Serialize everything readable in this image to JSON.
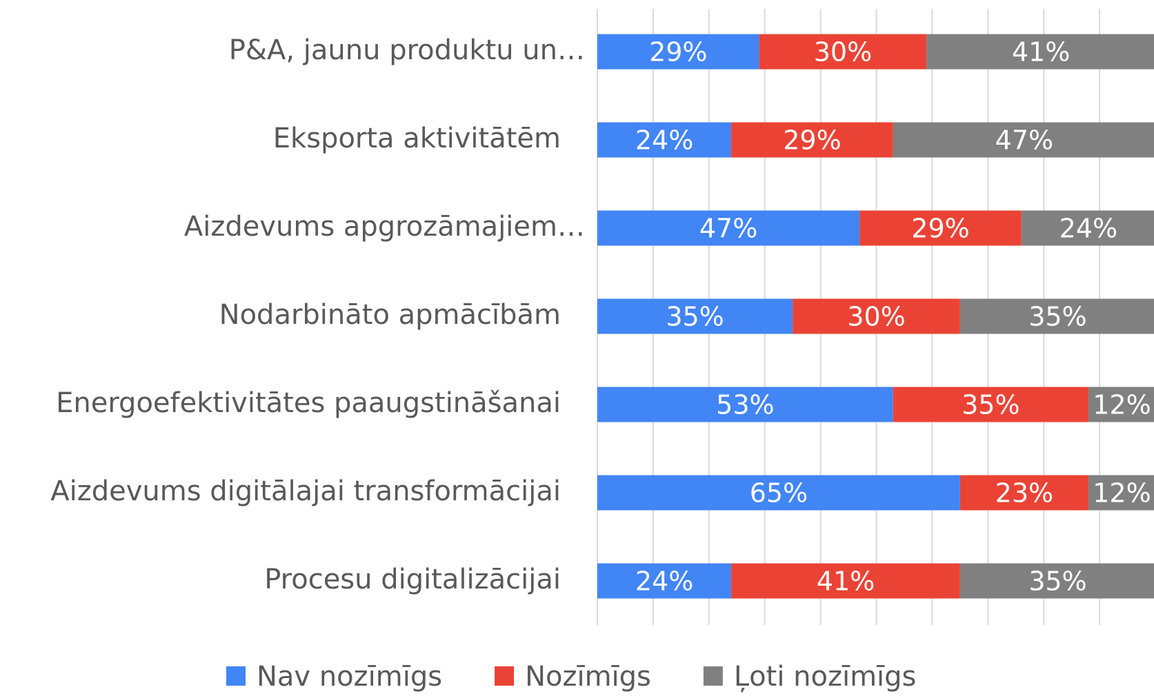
{
  "chart_data": {
    "type": "stacked_barh",
    "categories": [
      "P&A, jaunu produktu un…",
      "Eksporta aktivitātēm",
      "Aizdevums apgrozāmajiem…",
      "Nodarbināto apmācībām",
      "Energoefektivitātes paaugstināšanai",
      "Aizdevums digitālajai transformācijai",
      "Procesu digitalizācijai"
    ],
    "series": [
      {
        "name": "Nav nozīmīgs",
        "color": "#4285f4",
        "values": [
          29,
          24,
          47,
          35,
          53,
          65,
          24
        ],
        "value_labels": [
          "29%",
          "24%",
          "47%",
          "35%",
          "53%",
          "65%",
          "24%"
        ]
      },
      {
        "name": "Nozīmīgs",
        "color": "#ea4335",
        "values": [
          30,
          29,
          29,
          30,
          35,
          23,
          41
        ],
        "value_labels": [
          "30%",
          "29%",
          "29%",
          "30%",
          "35%",
          "23%",
          "41%"
        ]
      },
      {
        "name": "Ļoti nozīmīgs",
        "color": "#808080",
        "values": [
          41,
          47,
          24,
          35,
          12,
          12,
          35
        ],
        "value_labels": [
          "41%",
          "47%",
          "24%",
          "35%",
          "12%",
          "12%",
          "35%"
        ]
      }
    ],
    "xlim": [
      0,
      100
    ],
    "xticks": [
      0,
      10,
      20,
      30,
      40,
      50,
      60,
      70,
      80,
      90,
      100
    ],
    "grid": true,
    "legend": "bottom"
  }
}
